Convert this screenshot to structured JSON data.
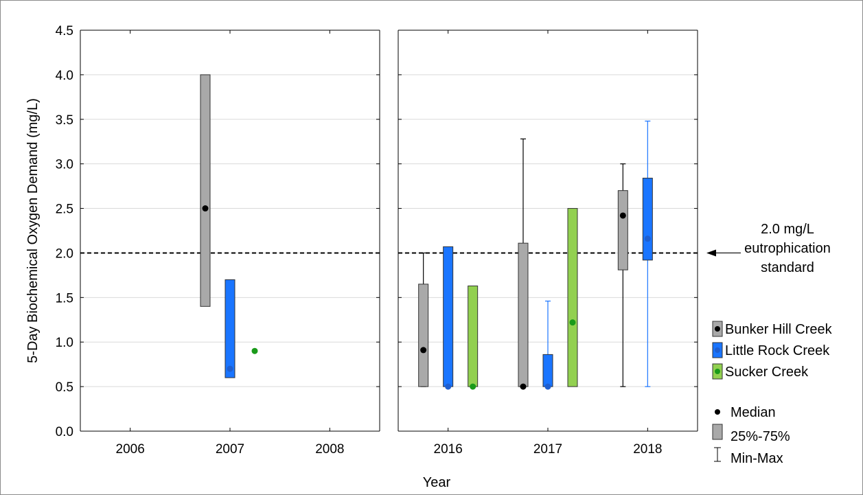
{
  "chart_data": {
    "type": "box",
    "ylabel": "5-Day Biochemical Oxygen Demand (mg/L)",
    "xlabel": "Year",
    "ylim": [
      0.0,
      4.5
    ],
    "yticks": [
      "0.0",
      "0.5",
      "1.0",
      "1.5",
      "2.0",
      "2.5",
      "3.0",
      "3.5",
      "4.0",
      "4.5"
    ],
    "grid": "horizontal",
    "panels": [
      {
        "categories": [
          "2006",
          "2007",
          "2008"
        ]
      },
      {
        "categories": [
          "2016",
          "2017",
          "2018"
        ]
      }
    ],
    "series": [
      {
        "name": "Bunker Hill Creek",
        "color": "#a9a9a9",
        "marker_color": "#000000",
        "points": [
          {
            "year": "2007",
            "median": 2.5,
            "q1": 1.4,
            "q3": 4.0,
            "min": null,
            "max": null
          },
          {
            "year": "2016",
            "median": 0.91,
            "q1": 0.5,
            "q3": 1.65,
            "min": 0.5,
            "max": 2.0
          },
          {
            "year": "2017",
            "median": 0.5,
            "q1": 0.5,
            "q3": 2.11,
            "min": 0.5,
            "max": 3.28
          },
          {
            "year": "2018",
            "median": 2.42,
            "q1": 1.81,
            "q3": 2.7,
            "min": 0.5,
            "max": 3.0
          }
        ]
      },
      {
        "name": "Little Rock Creek",
        "color": "#1a75ff",
        "marker_color": "#1f5fd0",
        "points": [
          {
            "year": "2007",
            "median": 0.7,
            "q1": 0.6,
            "q3": 1.7,
            "min": null,
            "max": null
          },
          {
            "year": "2016",
            "median": 0.5,
            "q1": 0.5,
            "q3": 2.07,
            "min": null,
            "max": null
          },
          {
            "year": "2017",
            "median": 0.5,
            "q1": 0.5,
            "q3": 0.86,
            "min": 0.5,
            "max": 1.46
          },
          {
            "year": "2018",
            "median": 2.16,
            "q1": 1.92,
            "q3": 2.84,
            "min": 0.5,
            "max": 3.48
          }
        ]
      },
      {
        "name": "Sucker Creek",
        "color": "#92d050",
        "marker_color": "#1a9a1a",
        "points": [
          {
            "year": "2007",
            "median": 0.9,
            "q1": null,
            "q3": null,
            "min": null,
            "max": null
          },
          {
            "year": "2016",
            "median": 0.5,
            "q1": 0.5,
            "q3": 1.63,
            "min": null,
            "max": null
          },
          {
            "year": "2017",
            "median": 1.22,
            "q1": 0.5,
            "q3": 2.5,
            "min": null,
            "max": null
          }
        ]
      }
    ],
    "reference_line": {
      "value": 2.0,
      "label_lines": [
        "2.0 mg/L",
        "eutrophication",
        "standard"
      ]
    },
    "legend": {
      "placement": "right",
      "series_names": [
        "Bunker Hill Creek",
        "Little Rock Creek",
        "Sucker Creek"
      ],
      "stat_labels": [
        "Median",
        "25%-75%",
        "Min-Max"
      ]
    }
  }
}
